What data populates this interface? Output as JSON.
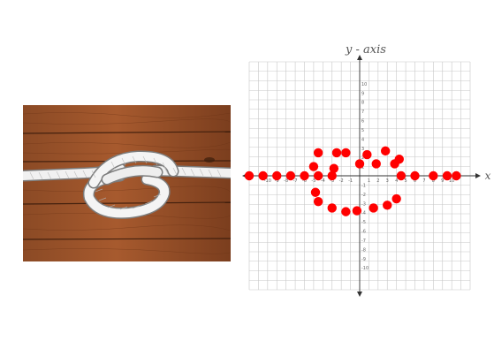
{
  "photo": {
    "icon": "knotted-rope-on-wood-photo"
  },
  "graph": {
    "y_axis_label": "y - axis",
    "x_axis_label": "x",
    "xlim": [
      -10,
      10
    ],
    "ylim": [
      -10,
      10
    ],
    "grid": true,
    "x_ticks": [
      -10,
      -9,
      -8,
      -7,
      -6,
      -5,
      -4,
      -3,
      -2,
      -1,
      1,
      2,
      3,
      4,
      5,
      6,
      7,
      8,
      9,
      10
    ],
    "y_ticks": [
      10,
      9,
      8,
      7,
      6,
      5,
      4,
      3,
      2,
      1,
      -1,
      -2,
      -3,
      -4,
      -5,
      -6,
      -7,
      -8,
      -9,
      -10
    ],
    "dot_color": "#ff0000",
    "grid_color": "#c8c8c8",
    "points": [
      [
        -12,
        0
      ],
      [
        -10.5,
        0
      ],
      [
        -9,
        0
      ],
      [
        -7.5,
        0
      ],
      [
        -6,
        0
      ],
      [
        -4.5,
        0
      ],
      [
        -3,
        0
      ],
      [
        -4.8,
        -1.8
      ],
      [
        -4.5,
        -2.8
      ],
      [
        -3,
        -3.5
      ],
      [
        -1.5,
        -3.9
      ],
      [
        -0.3,
        -3.8
      ],
      [
        1.5,
        -3.5
      ],
      [
        3,
        -3.2
      ],
      [
        4,
        -2.5
      ],
      [
        -5,
        1
      ],
      [
        -4.5,
        2.5
      ],
      [
        -2.5,
        2.5
      ],
      [
        -2.8,
        0.8
      ],
      [
        -1.5,
        2.5
      ],
      [
        0,
        1.3
      ],
      [
        0.8,
        2.3
      ],
      [
        1.8,
        1.3
      ],
      [
        2.8,
        2.7
      ],
      [
        3.8,
        1.3
      ],
      [
        4.3,
        1.8
      ],
      [
        4.5,
        0
      ],
      [
        6,
        0
      ],
      [
        8,
        0
      ],
      [
        9.5,
        0
      ],
      [
        10.5,
        0
      ]
    ]
  }
}
